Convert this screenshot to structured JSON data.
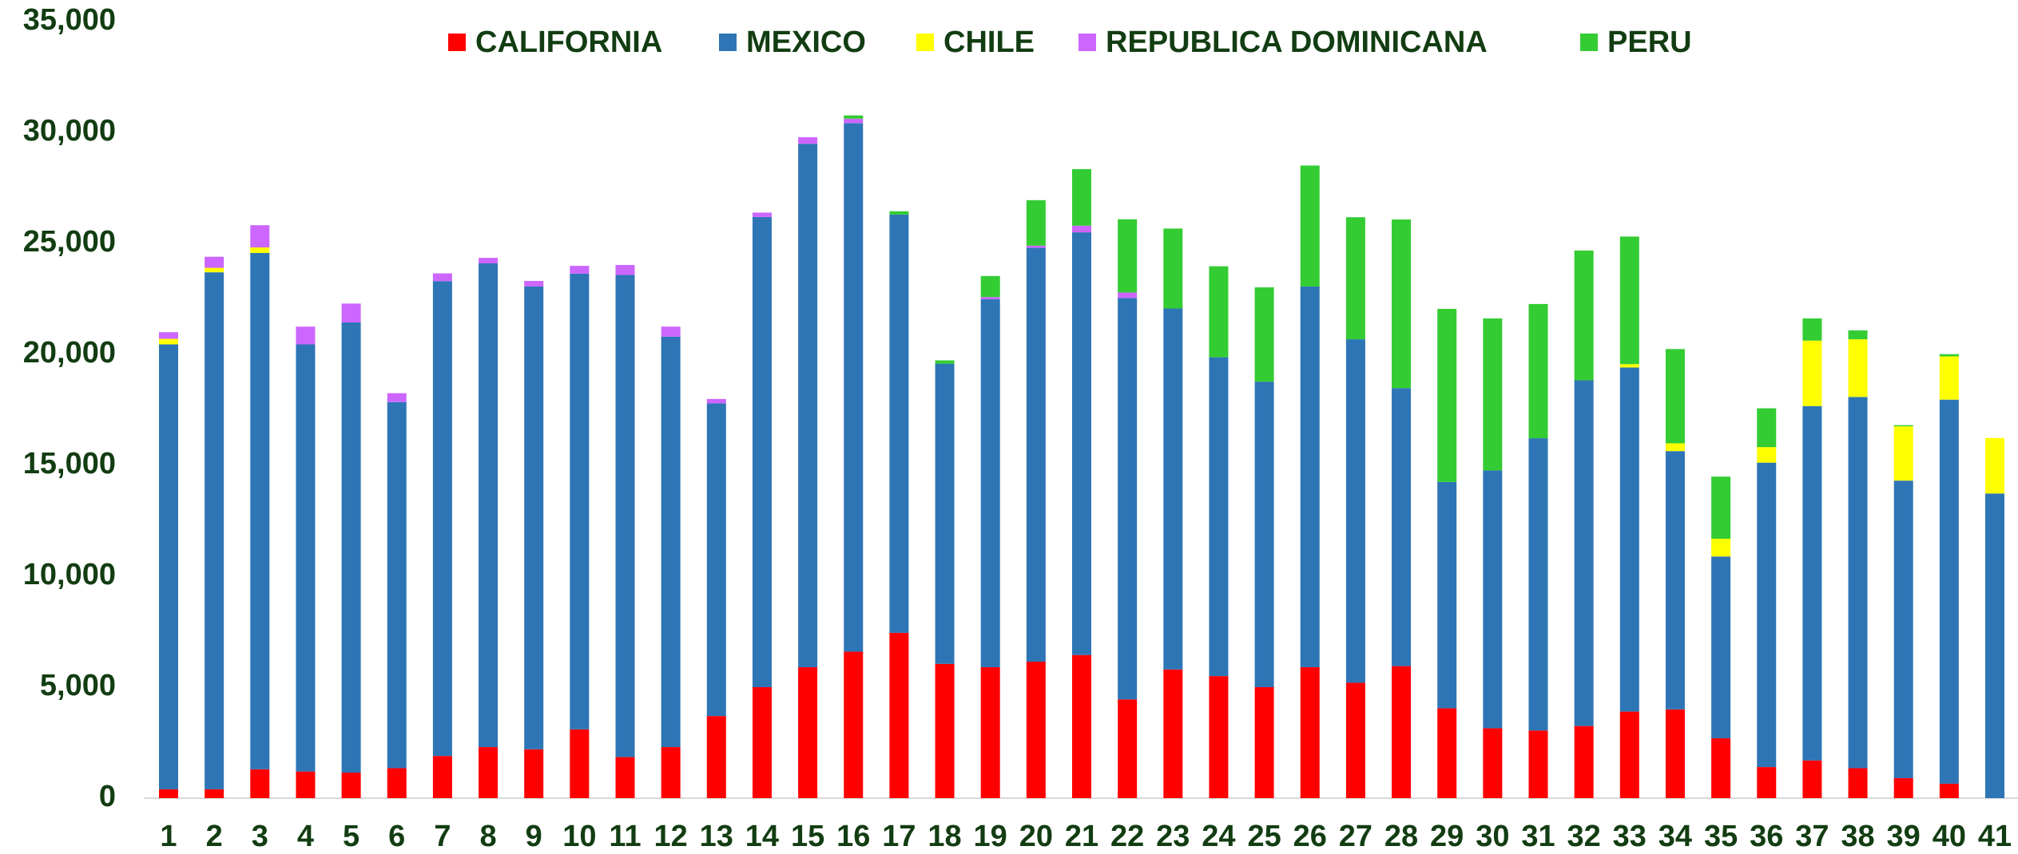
{
  "chart_data": {
    "type": "stacked_bar",
    "categories": [
      "1",
      "2",
      "3",
      "4",
      "5",
      "6",
      "7",
      "8",
      "9",
      "10",
      "11",
      "12",
      "13",
      "14",
      "15",
      "16",
      "17",
      "18",
      "19",
      "20",
      "21",
      "22",
      "23",
      "24",
      "25",
      "26",
      "27",
      "28",
      "29",
      "30",
      "31",
      "32",
      "33",
      "34",
      "35",
      "36",
      "37",
      "38",
      "39",
      "40",
      "41"
    ],
    "series": [
      {
        "name": "CALIFORNIA",
        "color": "#ff0000",
        "values": [
          400,
          400,
          1300,
          1200,
          1150,
          1350,
          1900,
          2300,
          2200,
          3100,
          1850,
          2300,
          3700,
          5000,
          5900,
          6600,
          7450,
          6050,
          5900,
          6150,
          6450,
          4450,
          5800,
          5500,
          5000,
          5900,
          5200,
          5950,
          4050,
          3150,
          3050,
          3250,
          3900,
          4000,
          2700,
          1400,
          1700,
          1350,
          900,
          650,
          0
        ]
      },
      {
        "name": "MEXICO",
        "color": "#2e75b6",
        "values": [
          20050,
          23300,
          23270,
          19250,
          20290,
          16500,
          21400,
          21800,
          20860,
          20540,
          21730,
          18500,
          14090,
          21190,
          23590,
          23820,
          18850,
          13530,
          16580,
          18650,
          19050,
          18090,
          16270,
          14370,
          13770,
          17160,
          15480,
          12530,
          10200,
          11620,
          13170,
          15580,
          15510,
          11640,
          8190,
          13720,
          15970,
          16730,
          13410,
          17310,
          13730
        ]
      },
      {
        "name": "CHILE",
        "color": "#ffff00",
        "values": [
          250,
          200,
          250,
          0,
          0,
          0,
          0,
          0,
          0,
          0,
          0,
          0,
          0,
          0,
          0,
          0,
          0,
          0,
          0,
          0,
          0,
          0,
          0,
          0,
          0,
          0,
          0,
          0,
          0,
          0,
          0,
          0,
          150,
          350,
          800,
          700,
          2950,
          2600,
          2450,
          1950,
          2500
        ]
      },
      {
        "name": "REPUBLICA DOMINICANA",
        "color": "#cc66ff",
        "values": [
          300,
          500,
          1000,
          800,
          850,
          400,
          350,
          250,
          250,
          350,
          450,
          450,
          200,
          200,
          300,
          200,
          0,
          0,
          100,
          100,
          300,
          250,
          0,
          0,
          0,
          0,
          0,
          0,
          0,
          0,
          0,
          0,
          0,
          0,
          0,
          0,
          0,
          0,
          0,
          0,
          0
        ]
      },
      {
        "name": "PERU",
        "color": "#33cc33",
        "values": [
          0,
          0,
          0,
          0,
          0,
          0,
          0,
          0,
          0,
          0,
          0,
          0,
          0,
          0,
          0,
          150,
          150,
          150,
          950,
          2050,
          2550,
          3300,
          3600,
          4100,
          4250,
          5450,
          5500,
          7600,
          7800,
          6850,
          6050,
          5850,
          5750,
          4250,
          2800,
          1750,
          1000,
          400,
          50,
          100,
          0
        ]
      }
    ],
    "ylim": [
      0,
      35000
    ],
    "yticks": [
      0,
      {
        "value": 5000,
        "label": "5,000"
      },
      {
        "value": 10000,
        "label": "10,000"
      },
      {
        "value": 15000,
        "label": "15,000"
      },
      {
        "value": 20000,
        "label": "20,000"
      },
      {
        "value": 25000,
        "label": "25,000"
      },
      {
        "value": 30000,
        "label": "30,000"
      },
      {
        "value": 35000,
        "label": "35,000"
      }
    ],
    "legend": "top"
  }
}
